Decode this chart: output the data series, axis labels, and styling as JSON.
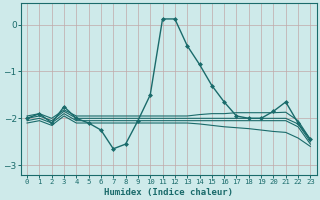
{
  "bg_color": "#ceeaea",
  "grid_color": "#b8c8c8",
  "line_color": "#1a6b6b",
  "marker_color": "#1a6b6b",
  "xlabel": "Humidex (Indice chaleur)",
  "xlim": [
    -0.5,
    23.5
  ],
  "ylim": [
    -3.2,
    0.45
  ],
  "xticks": [
    0,
    1,
    2,
    3,
    4,
    5,
    6,
    7,
    8,
    9,
    10,
    11,
    12,
    13,
    14,
    15,
    16,
    17,
    18,
    19,
    20,
    21,
    22,
    23
  ],
  "yticks": [
    0,
    -1,
    -2,
    -3
  ],
  "lines": [
    {
      "comment": "main line with markers - sharp peak at 11-12, dip at 7-8",
      "x": [
        0,
        1,
        2,
        3,
        4,
        5,
        6,
        7,
        8,
        9,
        10,
        11,
        12,
        13,
        14,
        15,
        16,
        17,
        18,
        19,
        20,
        21,
        22,
        23
      ],
      "y": [
        -2.0,
        -1.9,
        -2.1,
        -1.75,
        -2.0,
        -2.1,
        -2.25,
        -2.65,
        -2.55,
        -2.05,
        -1.5,
        0.12,
        0.12,
        -0.45,
        -0.85,
        -1.3,
        -1.65,
        -1.95,
        -2.0,
        -2.0,
        -1.85,
        -1.65,
        -2.1,
        -2.45
      ],
      "marker": true,
      "lw": 1.0
    },
    {
      "comment": "flat line slightly above -2, gently declining",
      "x": [
        0,
        1,
        2,
        3,
        4,
        5,
        6,
        7,
        8,
        9,
        10,
        11,
        12,
        13,
        14,
        15,
        16,
        17,
        18,
        19,
        20,
        21,
        22,
        23
      ],
      "y": [
        -1.95,
        -1.9,
        -2.0,
        -1.82,
        -1.95,
        -1.95,
        -1.95,
        -1.95,
        -1.95,
        -1.95,
        -1.95,
        -1.95,
        -1.95,
        -1.95,
        -1.92,
        -1.9,
        -1.9,
        -1.88,
        -1.88,
        -1.88,
        -1.88,
        -1.87,
        -2.05,
        -2.45
      ],
      "marker": false,
      "lw": 0.8
    },
    {
      "comment": "flat line just at -2, slowly declining to -2.5",
      "x": [
        0,
        1,
        2,
        3,
        4,
        5,
        6,
        7,
        8,
        9,
        10,
        11,
        12,
        13,
        14,
        15,
        16,
        17,
        18,
        19,
        20,
        21,
        22,
        23
      ],
      "y": [
        -2.0,
        -1.95,
        -2.05,
        -1.85,
        -2.0,
        -2.0,
        -2.0,
        -2.0,
        -2.0,
        -2.0,
        -2.0,
        -2.0,
        -2.0,
        -2.0,
        -2.0,
        -2.0,
        -2.0,
        -2.0,
        -2.0,
        -2.0,
        -2.0,
        -2.0,
        -2.12,
        -2.5
      ],
      "marker": false,
      "lw": 0.8
    },
    {
      "comment": "line slightly below -2",
      "x": [
        0,
        1,
        2,
        3,
        4,
        5,
        6,
        7,
        8,
        9,
        10,
        11,
        12,
        13,
        14,
        15,
        16,
        17,
        18,
        19,
        20,
        21,
        22,
        23
      ],
      "y": [
        -2.05,
        -2.0,
        -2.1,
        -1.9,
        -2.05,
        -2.05,
        -2.05,
        -2.05,
        -2.05,
        -2.05,
        -2.05,
        -2.05,
        -2.05,
        -2.05,
        -2.05,
        -2.05,
        -2.05,
        -2.05,
        -2.05,
        -2.05,
        -2.05,
        -2.05,
        -2.18,
        -2.55
      ],
      "marker": false,
      "lw": 0.8
    },
    {
      "comment": "lower declining line",
      "x": [
        0,
        1,
        2,
        3,
        4,
        5,
        6,
        7,
        8,
        9,
        10,
        11,
        12,
        13,
        14,
        15,
        16,
        17,
        18,
        19,
        20,
        21,
        22,
        23
      ],
      "y": [
        -2.1,
        -2.05,
        -2.15,
        -1.95,
        -2.1,
        -2.1,
        -2.1,
        -2.1,
        -2.1,
        -2.1,
        -2.1,
        -2.1,
        -2.1,
        -2.1,
        -2.12,
        -2.15,
        -2.18,
        -2.2,
        -2.22,
        -2.25,
        -2.28,
        -2.3,
        -2.42,
        -2.6
      ],
      "marker": false,
      "lw": 0.8
    }
  ]
}
